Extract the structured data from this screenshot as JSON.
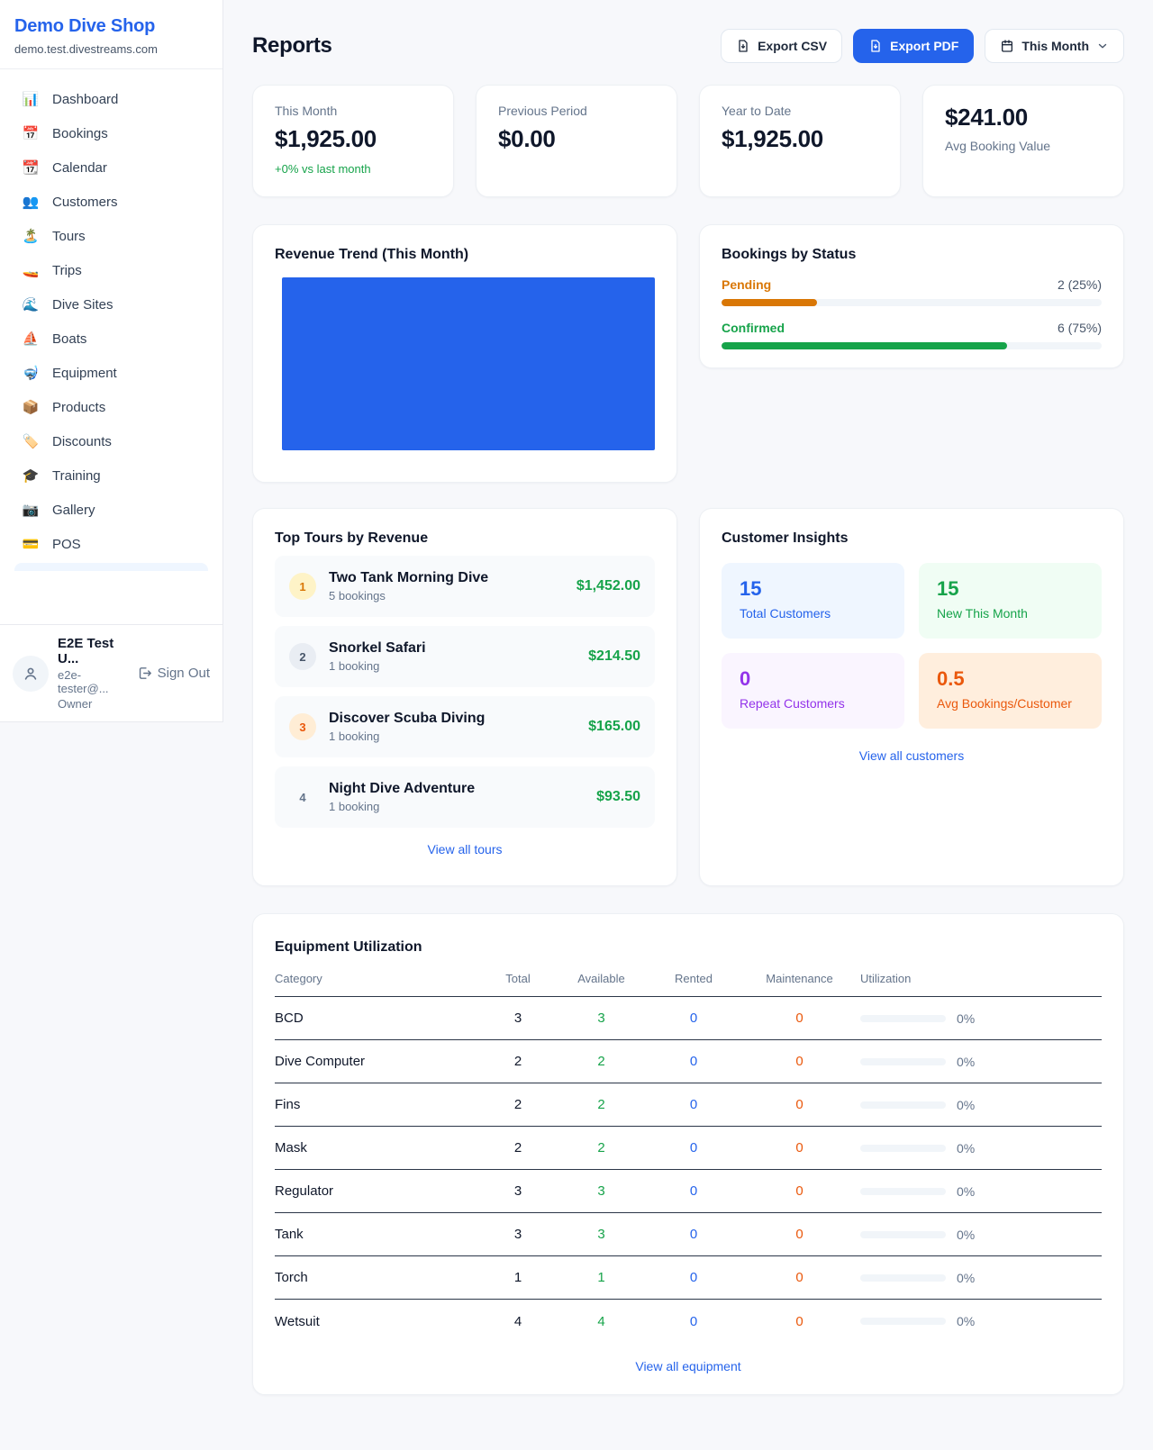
{
  "colors": {
    "accent": "#2563eb",
    "green": "#16a34a",
    "pending_orange": "#d97706",
    "maintenance_orange": "#ea580c",
    "revenue_bar": "#2563eb"
  },
  "sidebar": {
    "brand_name": "Demo Dive Shop",
    "brand_domain": "demo.test.divestreams.com",
    "items": [
      {
        "icon": "📊",
        "label": "Dashboard"
      },
      {
        "icon": "📅",
        "label": "Bookings"
      },
      {
        "icon": "📆",
        "label": "Calendar"
      },
      {
        "icon": "👥",
        "label": "Customers"
      },
      {
        "icon": "🏝️",
        "label": "Tours"
      },
      {
        "icon": "🚤",
        "label": "Trips"
      },
      {
        "icon": "🌊",
        "label": "Dive Sites"
      },
      {
        "icon": "⛵",
        "label": "Boats"
      },
      {
        "icon": "🤿",
        "label": "Equipment"
      },
      {
        "icon": "📦",
        "label": "Products"
      },
      {
        "icon": "🏷️",
        "label": "Discounts"
      },
      {
        "icon": "🎓",
        "label": "Training"
      },
      {
        "icon": "📷",
        "label": "Gallery"
      },
      {
        "icon": "💳",
        "label": "POS"
      }
    ],
    "user": {
      "name": "E2E Test U...",
      "email": "e2e-tester@...",
      "role": "Owner",
      "sign_out": "Sign Out"
    }
  },
  "header": {
    "title": "Reports",
    "export_csv": "Export CSV",
    "export_pdf": "Export PDF",
    "period": "This Month"
  },
  "stats": [
    {
      "label": "This Month",
      "value": "$1,925.00",
      "delta": "+0% vs last month"
    },
    {
      "label": "Previous Period",
      "value": "$0.00"
    },
    {
      "label": "Year to Date",
      "value": "$1,925.00"
    },
    {
      "label": "Avg Booking Value",
      "value": "$241.00"
    }
  ],
  "revenue_trend": {
    "title": "Revenue Trend (This Month)"
  },
  "chart_data": {
    "type": "bar",
    "title": "Revenue Trend (This Month)",
    "categories": [
      "This Month"
    ],
    "values": [
      1925
    ],
    "note": "single solid bar filling entire plot area, no axes or labels visible",
    "bar_color": "#2563eb"
  },
  "bookings_by_status": {
    "title": "Bookings by Status",
    "rows": [
      {
        "label": "Pending",
        "value": "2 (25%)",
        "pct": 25,
        "color": "#d97706"
      },
      {
        "label": "Confirmed",
        "value": "6 (75%)",
        "pct": 75,
        "color": "#16a34a"
      }
    ]
  },
  "top_tours": {
    "title": "Top Tours by Revenue",
    "items": [
      {
        "rank": "1",
        "name": "Two Tank Morning Dive",
        "bookings": "5 bookings",
        "amount": "$1,452.00"
      },
      {
        "rank": "2",
        "name": "Snorkel Safari",
        "bookings": "1 booking",
        "amount": "$214.50"
      },
      {
        "rank": "3",
        "name": "Discover Scuba Diving",
        "bookings": "1 booking",
        "amount": "$165.00"
      },
      {
        "rank": "4",
        "name": "Night Dive Adventure",
        "bookings": "1 booking",
        "amount": "$93.50"
      }
    ],
    "link": "View all tours"
  },
  "customer_insights": {
    "title": "Customer Insights",
    "tiles": [
      {
        "value": "15",
        "label": "Total Customers"
      },
      {
        "value": "15",
        "label": "New This Month"
      },
      {
        "value": "0",
        "label": "Repeat Customers"
      },
      {
        "value": "0.5",
        "label": "Avg Bookings/Customer"
      }
    ],
    "link": "View all customers"
  },
  "equipment": {
    "title": "Equipment Utilization",
    "columns": [
      "Category",
      "Total",
      "Available",
      "Rented",
      "Maintenance",
      "Utilization"
    ],
    "rows": [
      {
        "category": "BCD",
        "total": "3",
        "available": "3",
        "rented": "0",
        "maintenance": "0",
        "utilization": 0,
        "utilization_pct": "0%"
      },
      {
        "category": "Dive Computer",
        "total": "2",
        "available": "2",
        "rented": "0",
        "maintenance": "0",
        "utilization": 0,
        "utilization_pct": "0%"
      },
      {
        "category": "Fins",
        "total": "2",
        "available": "2",
        "rented": "0",
        "maintenance": "0",
        "utilization": 0,
        "utilization_pct": "0%"
      },
      {
        "category": "Mask",
        "total": "2",
        "available": "2",
        "rented": "0",
        "maintenance": "0",
        "utilization": 0,
        "utilization_pct": "0%"
      },
      {
        "category": "Regulator",
        "total": "3",
        "available": "3",
        "rented": "0",
        "maintenance": "0",
        "utilization": 0,
        "utilization_pct": "0%"
      },
      {
        "category": "Tank",
        "total": "3",
        "available": "3",
        "rented": "0",
        "maintenance": "0",
        "utilization": 0,
        "utilization_pct": "0%"
      },
      {
        "category": "Torch",
        "total": "1",
        "available": "1",
        "rented": "0",
        "maintenance": "0",
        "utilization": 0,
        "utilization_pct": "0%"
      },
      {
        "category": "Wetsuit",
        "total": "4",
        "available": "4",
        "rented": "0",
        "maintenance": "0",
        "utilization": 0,
        "utilization_pct": "0%"
      }
    ],
    "link": "View all equipment"
  }
}
